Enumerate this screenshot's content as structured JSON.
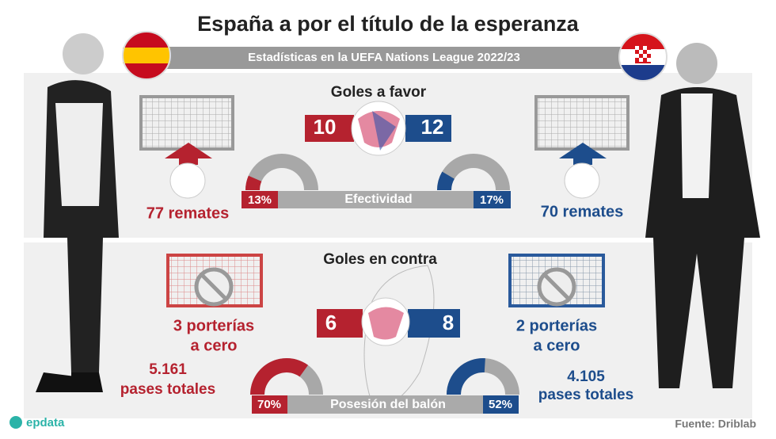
{
  "header": {
    "title": "España a por el título de la esperanza",
    "subtitle": "Estadísticas en la UEFA Nations League 2022/23"
  },
  "goals_for": {
    "label": "Goles a favor",
    "spain": 10,
    "croatia": 12
  },
  "shots": {
    "spain": "77 remates",
    "croatia": "70 remates"
  },
  "effectiveness": {
    "label": "Efectividad",
    "spain": {
      "value": 13,
      "label": "13%"
    },
    "croatia": {
      "value": 17,
      "label": "17%"
    }
  },
  "goals_against": {
    "label": "Goles en contra",
    "spain": 6,
    "croatia": 8
  },
  "clean_sheets": {
    "spain": [
      "3 porterías",
      "a cero"
    ],
    "croatia": [
      "2 porterías",
      "a cero"
    ]
  },
  "passes": {
    "spain": [
      "5.161",
      "pases totales"
    ],
    "croatia": [
      "4.105",
      "pases totales"
    ]
  },
  "possession": {
    "label": "Posesión del balón",
    "spain": {
      "value": 70,
      "label": "70%"
    },
    "croatia": {
      "value": 52,
      "label": "52%"
    }
  },
  "footer": {
    "brand": "epdata",
    "source": "Fuente: Driblab"
  }
}
